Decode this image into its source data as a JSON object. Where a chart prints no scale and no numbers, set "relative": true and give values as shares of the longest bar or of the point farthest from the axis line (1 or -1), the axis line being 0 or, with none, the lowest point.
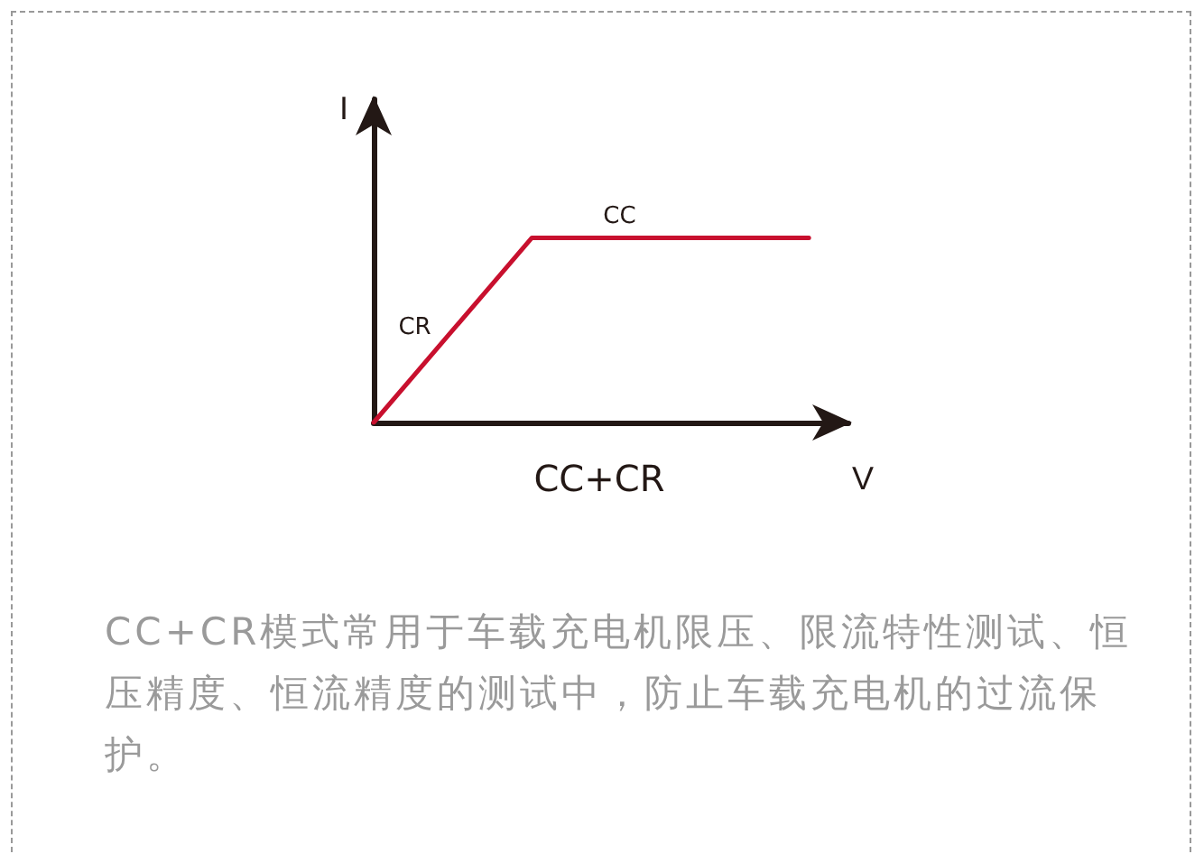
{
  "chart_data": {
    "type": "line",
    "relative": true,
    "title": "CC+CR",
    "xlabel": "V",
    "ylabel": "I",
    "categories": [
      null,
      null,
      null,
      null,
      null,
      null,
      null,
      null,
      null,
      null,
      null,
      null
    ],
    "series": [
      {
        "color": "#c8102e",
        "values": [
          0,
          0.25,
          0.5,
          0.75,
          1,
          1,
          1,
          1,
          1,
          1,
          1,
          1
        ]
      }
    ],
    "grid": false,
    "marker": "none",
    "line_style": "solid",
    "annotations": [
      "CR",
      "CC",
      "CC+CR模式常用于车载充电机限压、限流特性测试、恒压精度、恒流精度的测试中，防止车载充电机的过流保护。"
    ]
  }
}
